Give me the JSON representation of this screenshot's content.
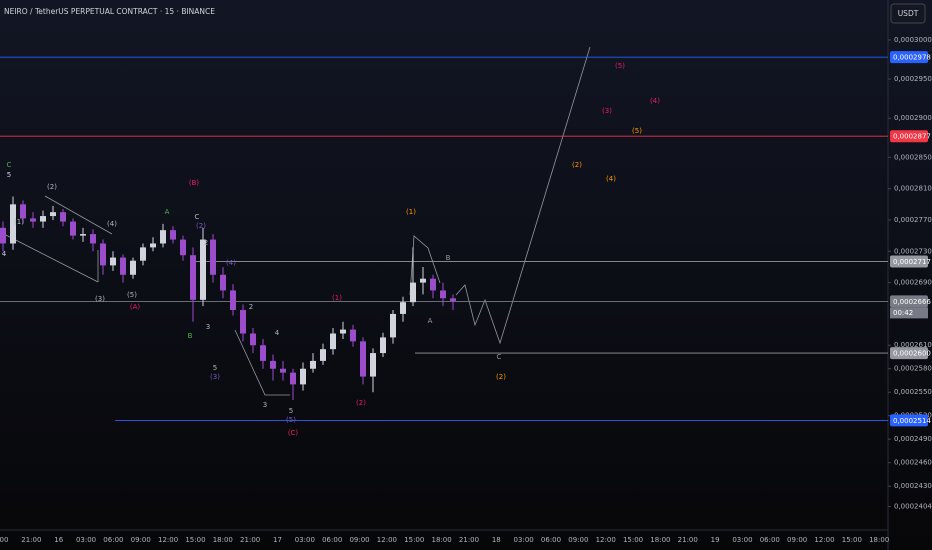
{
  "chart_data": {
    "type": "candlestick",
    "title": "NEIRO / TetherUS PERPETUAL CONTRACT · 15 · BINANCE",
    "currency": "USDT",
    "bull_color": "#d1d4dc",
    "bear_color": "#9c4dcc",
    "open": [
      0.000276,
      0.000274,
      0.000279,
      0.0002772,
      0.0002768,
      0.0002775,
      0.000278,
      0.0002768,
      0.000275,
      0.0002752,
      0.000274,
      0.0002712,
      0.0002722,
      0.00027,
      0.0002718,
      0.0002735,
      0.000274,
      0.0002757,
      0.0002745,
      0.0002725,
      0.0002668,
      0.0002745,
      0.00027,
      0.000268,
      0.0002655,
      0.0002625,
      0.000261,
      0.000259,
      0.000258,
      0.0002575,
      0.000256,
      0.000258,
      0.000259,
      0.0002605,
      0.0002625,
      0.000263,
      0.0002615,
      0.000257,
      0.00026,
      0.000262,
      0.000265,
      0.0002665,
      0.000269,
      0.0002695,
      0.000268,
      0.000267
    ],
    "high": [
      0.0002768,
      0.00028,
      0.0002795,
      0.000278,
      0.0002782,
      0.0002788,
      0.0002784,
      0.0002772,
      0.000276,
      0.0002758,
      0.0002745,
      0.000273,
      0.0002726,
      0.0002722,
      0.000274,
      0.0002748,
      0.0002765,
      0.0002762,
      0.000275,
      0.0002735,
      0.000276,
      0.0002752,
      0.000271,
      0.0002688,
      0.0002662,
      0.0002632,
      0.0002618,
      0.0002598,
      0.000259,
      0.000258,
      0.0002588,
      0.00026,
      0.0002612,
      0.0002632,
      0.000264,
      0.0002636,
      0.000262,
      0.0002606,
      0.0002626,
      0.0002655,
      0.0002672,
      0.0002735,
      0.000271,
      0.00027,
      0.000269,
      0.0002675
    ],
    "low": [
      0.000273,
      0.0002732,
      0.0002765,
      0.000276,
      0.000276,
      0.000277,
      0.0002762,
      0.0002745,
      0.0002742,
      0.000273,
      0.00027,
      0.0002705,
      0.000269,
      0.0002695,
      0.0002712,
      0.000273,
      0.0002735,
      0.000274,
      0.0002718,
      0.000264,
      0.000266,
      0.000269,
      0.000267,
      0.0002648,
      0.0002615,
      0.00026,
      0.000258,
      0.0002565,
      0.0002565,
      0.000254,
      0.0002552,
      0.0002575,
      0.0002585,
      0.0002598,
      0.0002618,
      0.0002608,
      0.000256,
      0.000255,
      0.0002595,
      0.0002612,
      0.000264,
      0.000266,
      0.0002675,
      0.000267,
      0.000266,
      0.0002655
    ],
    "close": [
      0.000274,
      0.000279,
      0.0002772,
      0.0002768,
      0.0002775,
      0.000278,
      0.0002768,
      0.000275,
      0.0002752,
      0.000274,
      0.0002712,
      0.0002722,
      0.00027,
      0.0002718,
      0.0002735,
      0.000274,
      0.0002757,
      0.0002745,
      0.0002725,
      0.0002668,
      0.0002745,
      0.00027,
      0.000268,
      0.0002655,
      0.0002625,
      0.000261,
      0.000259,
      0.000258,
      0.0002575,
      0.000256,
      0.000258,
      0.000259,
      0.0002605,
      0.0002625,
      0.000263,
      0.0002615,
      0.000257,
      0.00026,
      0.000262,
      0.000265,
      0.0002665,
      0.000269,
      0.0002695,
      0.000268,
      0.000267,
      0.0002666
    ],
    "ylim": [
      0.0002374,
      0.0003051
    ],
    "yticks": [
      {
        "value": 0.0003,
        "label": "0,0003000"
      },
      {
        "value": 0.000295,
        "label": "0,0002950"
      },
      {
        "value": 0.00029,
        "label": "0,0002900"
      },
      {
        "value": 0.000285,
        "label": "0,0002850"
      },
      {
        "value": 0.000281,
        "label": "0,0002810"
      },
      {
        "value": 0.000277,
        "label": "0,0002770"
      },
      {
        "value": 0.000273,
        "label": "0,0002730"
      },
      {
        "value": 0.000269,
        "label": "0,0002690"
      },
      {
        "value": 0.000261,
        "label": "0,0002610"
      },
      {
        "value": 0.000258,
        "label": "0,0002580"
      },
      {
        "value": 0.000255,
        "label": "0,0002550"
      },
      {
        "value": 0.000252,
        "label": "0,0002520"
      },
      {
        "value": 0.000249,
        "label": "0,0002490"
      },
      {
        "value": 0.000246,
        "label": "0,0002460"
      },
      {
        "value": 0.000243,
        "label": "0,0002430"
      },
      {
        "value": 0.0002404,
        "label": "0,0002404"
      }
    ],
    "time_labels": [
      "00",
      "21:00",
      "16",
      "03:00",
      "06:00",
      "09:00",
      "12:00",
      "15:00",
      "18:00",
      "21:00",
      "17",
      "03:00",
      "06:00",
      "09:00",
      "12:00",
      "15:00",
      "18:00",
      "21:00",
      "18",
      "03:00",
      "06:00",
      "09:00",
      "12:00",
      "15:00",
      "18:00",
      "21:00",
      "19",
      "03:00",
      "06:00",
      "09:00",
      "12:00",
      "15:00",
      "18:00"
    ],
    "levels": [
      {
        "value": 0.0002978,
        "label": "0,0002978",
        "color": "#2962ff"
      },
      {
        "value": 0.0002877,
        "label": "0,0002877",
        "color": "#f23645"
      },
      {
        "value": 0.0002717,
        "label": "0,0002717",
        "color": "#9598a1"
      },
      {
        "value": 0.0002666,
        "label": "0,0002666",
        "color": "#787b86"
      },
      {
        "value": 0.00026,
        "label": "0,0002600",
        "color": "#9598a1"
      },
      {
        "value": 0.0002514,
        "label": "0,0002514",
        "color": "#2962ff"
      }
    ],
    "countdown": "00:42",
    "annotations": [
      {
        "text": "C",
        "color": "#4caf50"
      },
      {
        "text": "5",
        "color": "#d1d4dc"
      },
      {
        "text": "4",
        "color": "#d1d4dc"
      },
      {
        "text": "(1)",
        "color": "#b2b5be"
      },
      {
        "text": "(2)",
        "color": "#b2b5be"
      },
      {
        "text": "(3)",
        "color": "#b2b5be"
      },
      {
        "text": "(4)",
        "color": "#b2b5be"
      },
      {
        "text": "(5)",
        "color": "#b2b5be"
      },
      {
        "text": "(A)",
        "color": "#e91e63"
      },
      {
        "text": "(B)",
        "color": "#e91e63"
      },
      {
        "text": "A",
        "color": "#4caf50"
      },
      {
        "text": "C",
        "color": "#b2b5be"
      },
      {
        "text": "(2)",
        "color": "#7e57c2"
      },
      {
        "text": "2",
        "color": "#b2b5be"
      },
      {
        "text": "(4)",
        "color": "#7e57c2"
      },
      {
        "text": "B",
        "color": "#4caf50"
      },
      {
        "text": "3",
        "color": "#b2b5be"
      },
      {
        "text": "2",
        "color": "#b2b5be"
      },
      {
        "text": "4",
        "color": "#b2b5be"
      },
      {
        "text": "5",
        "color": "#b2b5be"
      },
      {
        "text": "(3)",
        "color": "#7e57c2"
      },
      {
        "text": "3",
        "color": "#b2b5be"
      },
      {
        "text": "5",
        "color": "#b2b5be"
      },
      {
        "text": "(5)",
        "color": "#7e57c2"
      },
      {
        "text": "(C)",
        "color": "#e91e63"
      },
      {
        "text": "(1)",
        "color": "#e91e63"
      },
      {
        "text": "(2)",
        "color": "#e91e63"
      },
      {
        "text": "(1)",
        "color": "#ff9800"
      },
      {
        "text": "B",
        "color": "#9598a1"
      },
      {
        "text": "A",
        "color": "#9598a1"
      },
      {
        "text": "C",
        "color": "#9598a1"
      },
      {
        "text": "(2)",
        "color": "#ff9800"
      },
      {
        "text": "(2)",
        "color": "#ff9800"
      },
      {
        "text": "(3)",
        "color": "#e91e63"
      },
      {
        "text": "(4)",
        "color": "#ff9800"
      },
      {
        "text": "(5)",
        "color": "#e91e63"
      },
      {
        "text": "(4)",
        "color": "#e91e63"
      },
      {
        "text": "(5)",
        "color": "#ff9800"
      }
    ]
  }
}
